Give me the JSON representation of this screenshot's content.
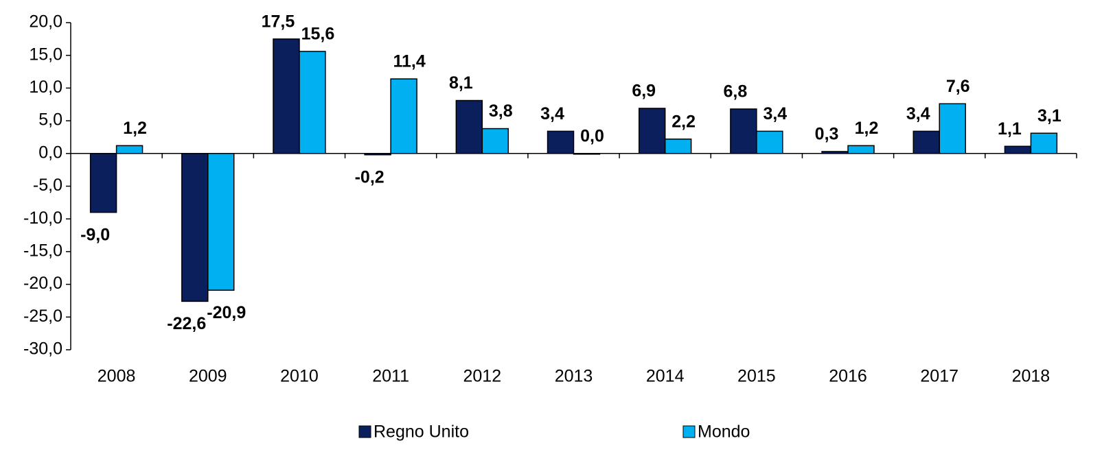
{
  "chart_data": {
    "type": "bar",
    "categories": [
      "2008",
      "2009",
      "2010",
      "2011",
      "2012",
      "2013",
      "2014",
      "2015",
      "2016",
      "2017",
      "2018"
    ],
    "series": [
      {
        "name": "Regno Unito",
        "color": "#0a1f5c",
        "values": [
          -9.0,
          -22.6,
          17.5,
          -0.2,
          8.1,
          3.4,
          6.9,
          6.8,
          0.3,
          3.4,
          1.1
        ],
        "value_labels": [
          "-9,0",
          "-22,6",
          "17,5",
          "-0,2",
          "8,1",
          "3,4",
          "6,9",
          "6,8",
          "0,3",
          "3,4",
          "1,1"
        ]
      },
      {
        "name": "Mondo",
        "color": "#00b0f0",
        "values": [
          1.2,
          -20.9,
          15.6,
          11.4,
          3.8,
          0.0,
          2.2,
          3.4,
          1.2,
          7.6,
          3.1
        ],
        "value_labels": [
          "1,2",
          "-20,9",
          "15,6",
          "11,4",
          "3,8",
          "0,0",
          "2,2",
          "3,4",
          "1,2",
          "7,6",
          "3,1"
        ]
      }
    ],
    "ylim": [
      -30,
      20
    ],
    "yticks": [
      {
        "value": -30,
        "label": "-30,0"
      },
      {
        "value": -25,
        "label": "-25,0"
      },
      {
        "value": -20,
        "label": "-20,0"
      },
      {
        "value": -15,
        "label": "-15,0"
      },
      {
        "value": -10,
        "label": "-10,0"
      },
      {
        "value": -5,
        "label": "-5,0"
      },
      {
        "value": 0,
        "label": "0,0"
      },
      {
        "value": 5,
        "label": "5,0"
      },
      {
        "value": 10,
        "label": "10,0"
      },
      {
        "value": 15,
        "label": "15,0"
      },
      {
        "value": 20,
        "label": "20,0"
      }
    ],
    "grid": false
  }
}
